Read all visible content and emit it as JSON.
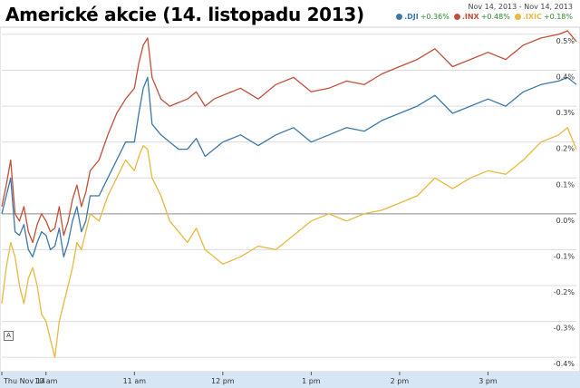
{
  "title": "Americké akcie (14. listopadu 2013)",
  "date_range": "Nov 14, 2013 - Nov 14, 2013",
  "legend": [
    {
      "symbol": ".DJI",
      "change": "+0.36%",
      "color": "#3b78a8"
    },
    {
      "symbol": ".INX",
      "change": "+0.48%",
      "color": "#c0503a"
    },
    {
      "symbol": ".IXIC",
      "change": "+0.18%",
      "color": "#e8b840"
    }
  ],
  "event_marker": "A",
  "chart_data": {
    "type": "line",
    "y_ticks": [
      "0.5%",
      "0.4%",
      "0.3%",
      "0.2%",
      "0.1%",
      "0.0%",
      "-0.1%",
      "-0.2%",
      "-0.3%",
      "-0.4%"
    ],
    "x_ticks": [
      "Thu Nov 14",
      "10 am",
      "11 am",
      "12 pm",
      "1 pm",
      "2 pm",
      "3 pm"
    ],
    "ylim": [
      -0.44,
      0.52
    ],
    "x_unit": "hours",
    "xlim": [
      9.5,
      16.0
    ],
    "grid": true,
    "series": [
      {
        "name": ".DJI",
        "color": "#3b78a8",
        "x": [
          9.5,
          9.55,
          9.6,
          9.65,
          9.7,
          9.75,
          9.8,
          9.85,
          9.9,
          9.95,
          10.0,
          10.05,
          10.1,
          10.15,
          10.2,
          10.25,
          10.3,
          10.35,
          10.4,
          10.45,
          10.5,
          10.6,
          10.7,
          10.8,
          10.9,
          11.0,
          11.05,
          11.1,
          11.15,
          11.2,
          11.3,
          11.4,
          11.5,
          11.6,
          11.7,
          11.8,
          11.9,
          12.0,
          12.2,
          12.4,
          12.6,
          12.8,
          13.0,
          13.2,
          13.4,
          13.6,
          13.8,
          14.0,
          14.2,
          14.4,
          14.6,
          14.8,
          15.0,
          15.2,
          15.4,
          15.6,
          15.8,
          15.9,
          16.0
        ],
        "values": [
          0.0,
          0.05,
          0.1,
          -0.05,
          -0.06,
          -0.03,
          -0.1,
          -0.12,
          -0.08,
          -0.05,
          -0.06,
          -0.1,
          -0.09,
          -0.04,
          -0.12,
          -0.08,
          -0.02,
          0.02,
          -0.05,
          -0.02,
          0.05,
          0.05,
          0.1,
          0.15,
          0.2,
          0.2,
          0.28,
          0.35,
          0.38,
          0.25,
          0.22,
          0.2,
          0.18,
          0.18,
          0.21,
          0.16,
          0.18,
          0.2,
          0.22,
          0.19,
          0.22,
          0.24,
          0.2,
          0.22,
          0.24,
          0.23,
          0.26,
          0.28,
          0.3,
          0.33,
          0.28,
          0.3,
          0.32,
          0.3,
          0.34,
          0.36,
          0.37,
          0.38,
          0.36
        ]
      },
      {
        "name": ".INX",
        "color": "#c0503a",
        "x": [
          9.5,
          9.55,
          9.6,
          9.65,
          9.7,
          9.75,
          9.8,
          9.85,
          9.9,
          9.95,
          10.0,
          10.05,
          10.1,
          10.15,
          10.2,
          10.25,
          10.3,
          10.35,
          10.4,
          10.45,
          10.5,
          10.6,
          10.7,
          10.8,
          10.9,
          11.0,
          11.05,
          11.1,
          11.15,
          11.2,
          11.3,
          11.4,
          11.5,
          11.6,
          11.7,
          11.8,
          11.9,
          12.0,
          12.2,
          12.4,
          12.6,
          12.8,
          13.0,
          13.2,
          13.4,
          13.6,
          13.8,
          14.0,
          14.2,
          14.4,
          14.6,
          14.8,
          15.0,
          15.2,
          15.4,
          15.6,
          15.8,
          15.9,
          16.0
        ],
        "values": [
          0.02,
          0.08,
          0.15,
          0.0,
          -0.02,
          0.02,
          -0.05,
          -0.08,
          -0.03,
          0.0,
          -0.02,
          -0.05,
          -0.04,
          0.02,
          -0.06,
          -0.02,
          0.04,
          0.08,
          0.02,
          0.06,
          0.12,
          0.15,
          0.22,
          0.28,
          0.32,
          0.35,
          0.42,
          0.47,
          0.49,
          0.38,
          0.32,
          0.3,
          0.31,
          0.32,
          0.34,
          0.3,
          0.32,
          0.33,
          0.35,
          0.32,
          0.36,
          0.38,
          0.34,
          0.35,
          0.37,
          0.36,
          0.39,
          0.41,
          0.43,
          0.46,
          0.41,
          0.43,
          0.45,
          0.43,
          0.47,
          0.49,
          0.5,
          0.51,
          0.48
        ]
      },
      {
        "name": ".IXIC",
        "color": "#e8b840",
        "x": [
          9.5,
          9.55,
          9.6,
          9.65,
          9.7,
          9.75,
          9.8,
          9.85,
          9.9,
          9.95,
          10.0,
          10.05,
          10.1,
          10.15,
          10.2,
          10.25,
          10.3,
          10.35,
          10.4,
          10.45,
          10.5,
          10.6,
          10.7,
          10.8,
          10.9,
          11.0,
          11.05,
          11.1,
          11.15,
          11.2,
          11.3,
          11.4,
          11.5,
          11.6,
          11.7,
          11.8,
          11.9,
          12.0,
          12.2,
          12.4,
          12.6,
          12.8,
          13.0,
          13.2,
          13.4,
          13.6,
          13.8,
          14.0,
          14.2,
          14.4,
          14.6,
          14.8,
          15.0,
          15.2,
          15.4,
          15.6,
          15.8,
          15.9,
          16.0
        ],
        "values": [
          -0.25,
          -0.15,
          -0.08,
          -0.12,
          -0.2,
          -0.25,
          -0.18,
          -0.15,
          -0.2,
          -0.28,
          -0.3,
          -0.35,
          -0.4,
          -0.3,
          -0.25,
          -0.2,
          -0.15,
          -0.08,
          -0.1,
          -0.05,
          0.0,
          -0.02,
          0.05,
          0.1,
          0.15,
          0.12,
          0.16,
          0.19,
          0.18,
          0.1,
          0.05,
          -0.02,
          -0.05,
          -0.08,
          -0.04,
          -0.1,
          -0.12,
          -0.14,
          -0.12,
          -0.09,
          -0.1,
          -0.06,
          -0.02,
          0.0,
          -0.02,
          0.0,
          0.01,
          0.03,
          0.05,
          0.1,
          0.07,
          0.1,
          0.12,
          0.11,
          0.15,
          0.2,
          0.22,
          0.24,
          0.18
        ]
      }
    ]
  }
}
